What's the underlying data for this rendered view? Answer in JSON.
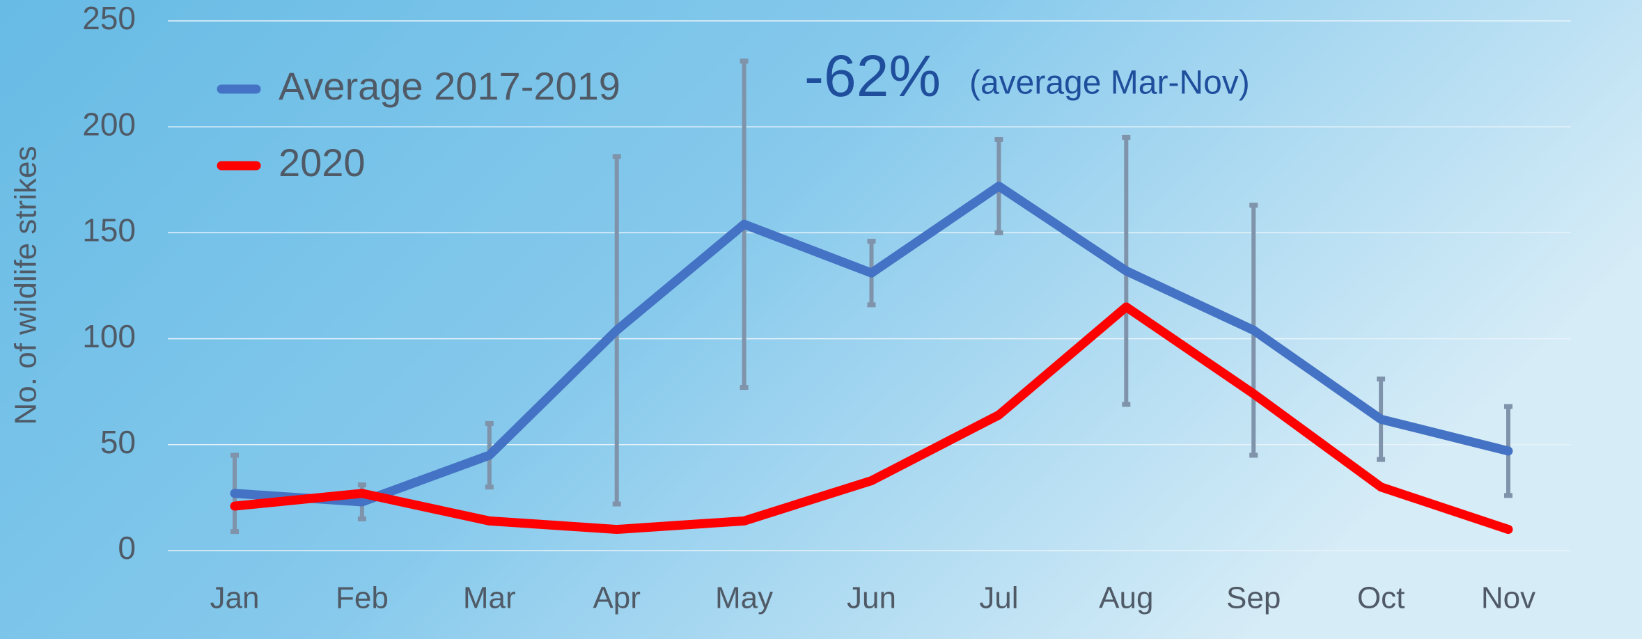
{
  "chart_data": {
    "type": "line",
    "y_label": "No. of wildlife strikes",
    "annotation_big": "-62%",
    "annotation_small": "(average Mar-Nov)",
    "categories": [
      "Jan",
      "Feb",
      "Mar",
      "Apr",
      "May",
      "Jun",
      "Jul",
      "Aug",
      "Sep",
      "Oct",
      "Nov"
    ],
    "series": [
      {
        "name": "Average 2017-2019",
        "color": "#4472c4",
        "values": [
          27,
          23,
          45,
          104,
          154,
          131,
          172,
          132,
          104,
          62,
          47
        ],
        "errors": [
          18,
          8,
          15,
          82,
          77,
          15,
          22,
          63,
          59,
          19,
          21
        ],
        "error_color": "#7f93aa"
      },
      {
        "name": "2020",
        "color": "#ff0000",
        "values": [
          21,
          27,
          14,
          10,
          14,
          33,
          64,
          115,
          74,
          30,
          10
        ]
      }
    ],
    "ylim": [
      0,
      250
    ],
    "yticks": [
      0,
      50,
      100,
      150,
      200,
      250
    ],
    "grid": true,
    "legend": "top-left"
  }
}
